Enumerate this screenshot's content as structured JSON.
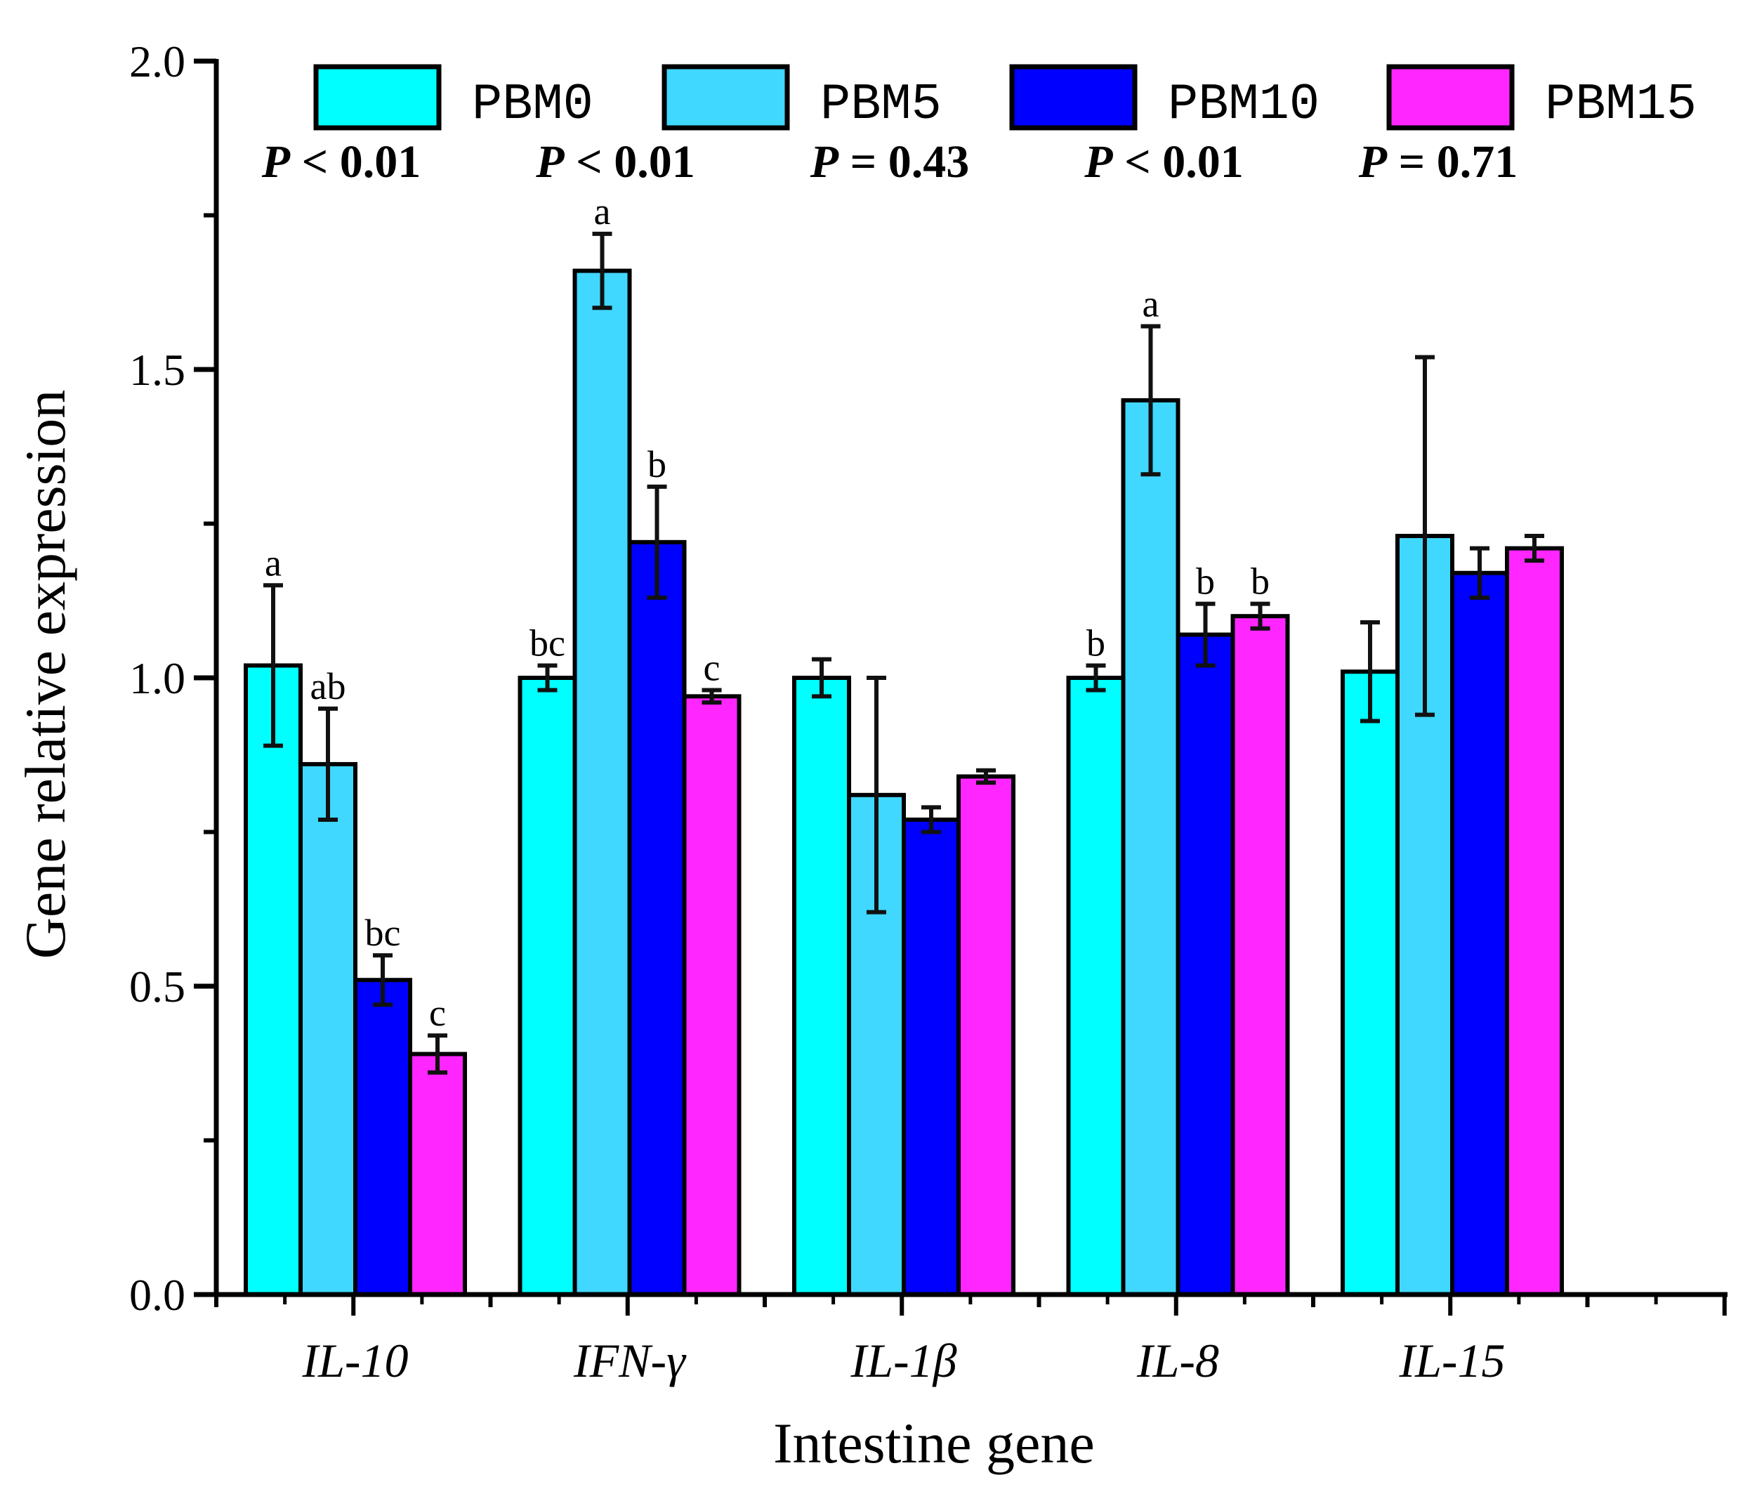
{
  "chart_data": {
    "type": "bar",
    "title": "",
    "xlabel": "Intestine gene",
    "ylabel": "Gene relative expression",
    "ylim": [
      0,
      2.0
    ],
    "yticks": [
      "0.0",
      "0.5",
      "1.0",
      "1.5",
      "2.0"
    ],
    "ytick_values": [
      0,
      0.5,
      1.0,
      1.5,
      2.0
    ],
    "categories": [
      "IL-10",
      "IFN-γ",
      "IL-1β",
      "IL-8",
      "IL-15"
    ],
    "p_values": [
      "P < 0.01",
      "P < 0.01",
      "P = 0.43",
      "P < 0.01",
      "P = 0.71"
    ],
    "legend_position": "top",
    "grid": false,
    "series": [
      {
        "name": "PBM0",
        "color": "#00FFFF",
        "values": [
          1.02,
          1.0,
          1.0,
          1.0,
          1.01
        ],
        "errors": [
          0.13,
          0.02,
          0.03,
          0.02,
          0.08
        ],
        "letters": [
          "a",
          "bc",
          "",
          "b",
          ""
        ]
      },
      {
        "name": "PBM5",
        "color": "#40D8FF",
        "values": [
          0.86,
          1.66,
          0.81,
          1.45,
          1.23
        ],
        "errors": [
          0.09,
          0.06,
          0.19,
          0.12,
          0.29
        ],
        "letters": [
          "ab",
          "a",
          "",
          "a",
          ""
        ]
      },
      {
        "name": "PBM10",
        "color": "#0000FF",
        "values": [
          0.51,
          1.22,
          0.77,
          1.07,
          1.17
        ],
        "errors": [
          0.04,
          0.09,
          0.02,
          0.05,
          0.04
        ],
        "letters": [
          "bc",
          "b",
          "",
          "b",
          ""
        ]
      },
      {
        "name": "PBM15",
        "color": "#FF26FF",
        "values": [
          0.39,
          0.97,
          0.84,
          1.1,
          1.21
        ],
        "errors": [
          0.03,
          0.01,
          0.01,
          0.02,
          0.02
        ],
        "letters": [
          "c",
          "c",
          "",
          "b",
          ""
        ]
      }
    ]
  }
}
